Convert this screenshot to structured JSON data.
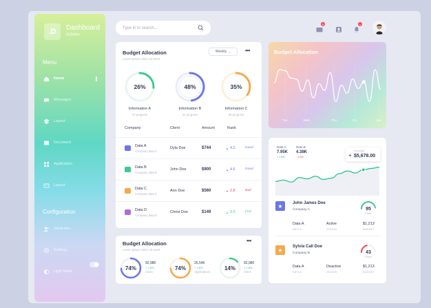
{
  "sidebar": {
    "logo_letter": ".D",
    "title": "Dashboard",
    "subtitle": "Admin",
    "menu_title": "Menu",
    "menu": [
      {
        "label": "Home",
        "icon": "home-icon",
        "active": true
      },
      {
        "label": "Messages",
        "icon": "messages-icon"
      },
      {
        "label": "Layout",
        "icon": "layers-icon"
      },
      {
        "label": "Document",
        "icon": "document-icon"
      },
      {
        "label": "Application",
        "icon": "grid-icon"
      },
      {
        "label": "Layout",
        "icon": "list-layout-icon"
      }
    ],
    "config_title": "Configuration",
    "config": [
      {
        "label": "Stock dev",
        "icon": "people-icon"
      },
      {
        "label": "Settings",
        "icon": "gear-icon"
      },
      {
        "label": "Light Mode",
        "icon": "theme-icon"
      }
    ]
  },
  "search": {
    "placeholder": "Type in to search..."
  },
  "topbar": {
    "mail_badge": "8",
    "bell_badge": "1"
  },
  "budget": {
    "title": "Budget Allocation",
    "subtitle": "Lorem ipsum dolor sit amet",
    "dropdown": "Weekly",
    "info": [
      {
        "pct": "26%",
        "label": "Information A",
        "sub": "72 progress",
        "value": 26,
        "color": "#3ec98f"
      },
      {
        "pct": "48%",
        "label": "Information B",
        "sub": "34 progress",
        "value": 48,
        "color": "#6b76e8"
      },
      {
        "pct": "35%",
        "label": "Information C",
        "sub": "96 progress",
        "value": 35,
        "color": "#f5a94a"
      }
    ],
    "headers": {
      "company": "Company",
      "client": "Client",
      "amount": "Amount",
      "rank": "Rank"
    },
    "rows": [
      {
        "company": "Data A",
        "sub": "Company data A",
        "client": "Dyla Doe",
        "amount": "$744",
        "rank": "4.2",
        "label": "Good",
        "dir": "up",
        "icon_color": "#6b76e8",
        "rank_color": "#6b76e8"
      },
      {
        "company": "Data B",
        "sub": "Company data B",
        "client": "John Doe",
        "amount": "$900",
        "rank": "4.6",
        "label": "Good",
        "dir": "up",
        "icon_color": "#3ec98f",
        "rank_color": "#6b76e8"
      },
      {
        "company": "Data C",
        "sub": "Company data C",
        "client": "Ann Doe",
        "amount": "$560",
        "rank": "2.8",
        "label": "Bad",
        "dir": "down",
        "icon_color": "#f5a94a",
        "rank_color": "#f0475b"
      },
      {
        "company": "Data D",
        "sub": "Company data D",
        "client": "Christ Doe",
        "amount": "$149",
        "rank": "3.9",
        "label": "Fine",
        "dir": "up",
        "icon_color": "#b06bd8",
        "rank_color": "#3ec98f"
      }
    ]
  },
  "budget2": {
    "title": "Budget Allocation",
    "subtitle": "Lorem ipsum dolor sit amet",
    "items": [
      {
        "pct": "74%",
        "value": 74,
        "num": "92,980",
        "growth": "+ 1.8%",
        "label": "Class",
        "color": "#6b76e8"
      },
      {
        "pct": "74%",
        "value": 74,
        "num": "26,546",
        "growth": "+ 1.8%",
        "label": "Applications",
        "color": "#f5a94a"
      },
      {
        "pct": "14%",
        "value": 14,
        "num": "92,980",
        "growth": "+ 1.8%",
        "label": "Class",
        "color": "#3ec98f"
      }
    ]
  },
  "grad_chart": {
    "title": "Budget Allocation",
    "days": [
      "Tue",
      "Wed",
      "Thu",
      "Fri",
      "Sat"
    ],
    "values": [
      60,
      88,
      86,
      70,
      68,
      42,
      66,
      28,
      58,
      44,
      82,
      20,
      55,
      38,
      68,
      48,
      62,
      20,
      88,
      46
    ]
  },
  "stats": {
    "a_label": "Data A",
    "a_value": "7.95K",
    "a_change": "+ 1.8%",
    "b_label": "Data B",
    "b_value": "4.38K",
    "b_change": "- 2.8%",
    "earn_label": "Earnings",
    "earn_value": "$5,678.00",
    "line": [
      30,
      28,
      31,
      24,
      26,
      22,
      27,
      25,
      18,
      14,
      17,
      12,
      10,
      8
    ]
  },
  "people": [
    {
      "name": "John James Doe",
      "company": "Company A",
      "gauge": "95",
      "gauge_pct": 95,
      "gauge_lbl": "Points",
      "data": "Data A",
      "data_cap": "INFO A",
      "status": "Active",
      "status_cap": "STATUS",
      "amount": "$1,213",
      "amount_cap": "BUDGET",
      "icon_color": "#6b76e8",
      "gauge_color": "#3ec98f"
    },
    {
      "name": "Sylvia Call Doe",
      "company": "Company B",
      "gauge": "43",
      "gauge_pct": 43,
      "gauge_lbl": "Points",
      "data": "Data A",
      "data_cap": "INFO A",
      "status": "Deactive",
      "status_cap": "STATUS",
      "amount": "$1,213",
      "amount_cap": "BUDGET",
      "icon_color": "#f5a94a",
      "gauge_color": "#f0475b"
    }
  ]
}
